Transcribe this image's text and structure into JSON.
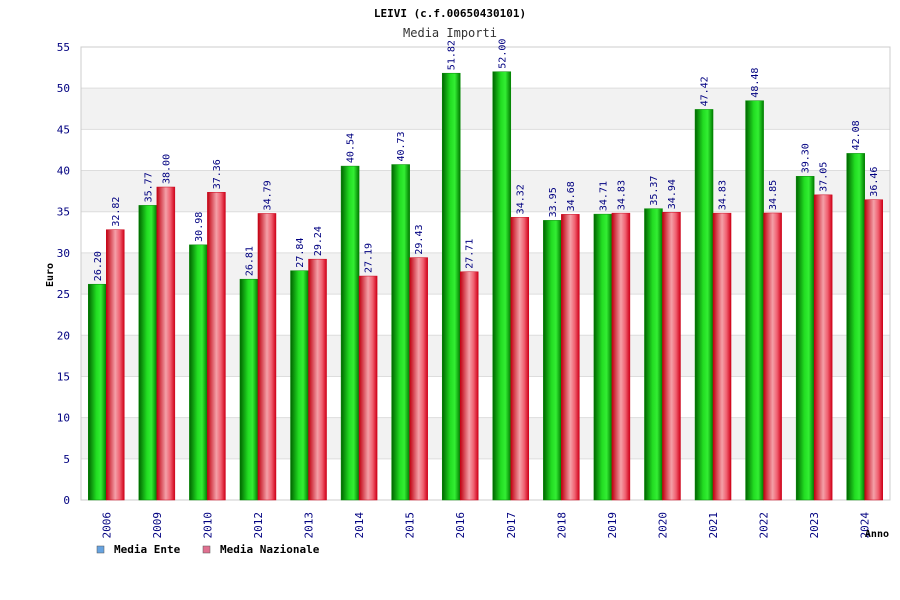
{
  "chart_data": {
    "type": "bar",
    "title": "LEIVI (c.f.00650430101)",
    "subtitle": "Media Importi",
    "xlabel": "Anno",
    "ylabel": "Euro",
    "ylim": [
      0,
      55
    ],
    "yticks": [
      0,
      5,
      10,
      15,
      20,
      25,
      30,
      35,
      40,
      45,
      50,
      55
    ],
    "grid": true,
    "legend_position": "bottom-left",
    "categories": [
      "2006",
      "2009",
      "2010",
      "2012",
      "2013",
      "2014",
      "2015",
      "2016",
      "2017",
      "2018",
      "2019",
      "2020",
      "2021",
      "2022",
      "2023",
      "2024"
    ],
    "series": [
      {
        "name": "Media Ente",
        "color": "#00b000",
        "legend_color": "#66a3e0",
        "values": [
          26.2,
          35.77,
          30.98,
          26.81,
          27.84,
          40.54,
          40.73,
          51.82,
          52.0,
          33.95,
          34.71,
          35.37,
          47.42,
          48.48,
          39.3,
          42.08
        ],
        "labels": [
          "26.20",
          "35.77",
          "30.98",
          "26.81",
          "27.84",
          "40.54",
          "40.73",
          "51.82",
          "52.00",
          "33.95",
          "34.71",
          "35.37",
          "47.42",
          "48.48",
          "39.30",
          "42.08"
        ]
      },
      {
        "name": "Media Nazionale",
        "color": "#e81020",
        "legend_color": "#e07090",
        "values": [
          32.82,
          38.0,
          37.36,
          34.79,
          29.24,
          27.19,
          29.43,
          27.71,
          34.32,
          34.68,
          34.83,
          34.94,
          34.83,
          34.85,
          37.05,
          36.46
        ],
        "labels": [
          "32.82",
          "38.00",
          "37.36",
          "34.79",
          "29.24",
          "27.19",
          "29.43",
          "27.71",
          "34.32",
          "34.68",
          "34.83",
          "34.94",
          "34.83",
          "34.85",
          "37.05",
          "36.46"
        ]
      }
    ]
  }
}
